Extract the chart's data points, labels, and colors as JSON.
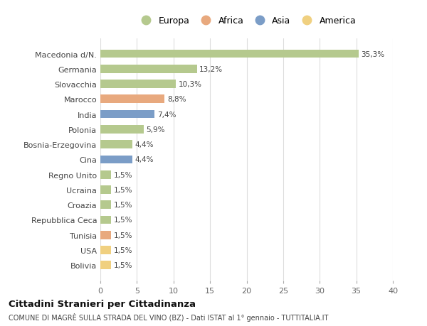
{
  "countries": [
    "Macedonia d/N.",
    "Germania",
    "Slovacchia",
    "Marocco",
    "India",
    "Polonia",
    "Bosnia-Erzegovina",
    "Cina",
    "Regno Unito",
    "Ucraina",
    "Croazia",
    "Repubblica Ceca",
    "Tunisia",
    "USA",
    "Bolivia"
  ],
  "values": [
    35.3,
    13.2,
    10.3,
    8.8,
    7.4,
    5.9,
    4.4,
    4.4,
    1.5,
    1.5,
    1.5,
    1.5,
    1.5,
    1.5,
    1.5
  ],
  "labels": [
    "35,3%",
    "13,2%",
    "10,3%",
    "8,8%",
    "7,4%",
    "5,9%",
    "4,4%",
    "4,4%",
    "1,5%",
    "1,5%",
    "1,5%",
    "1,5%",
    "1,5%",
    "1,5%",
    "1,5%"
  ],
  "categories": [
    "Europa",
    "Europa",
    "Europa",
    "Africa",
    "Asia",
    "Europa",
    "Europa",
    "Asia",
    "Europa",
    "Europa",
    "Europa",
    "Europa",
    "Africa",
    "America",
    "America"
  ],
  "colors": {
    "Europa": "#b5c98e",
    "Africa": "#e8a97e",
    "Asia": "#7b9dc7",
    "America": "#f0d080"
  },
  "xlim": [
    0,
    40
  ],
  "xticks": [
    0,
    5,
    10,
    15,
    20,
    25,
    30,
    35,
    40
  ],
  "title1": "Cittadini Stranieri per Cittadinanza",
  "title2": "COMUNE DI MAGRÈ SULLA STRADA DEL VINO (BZ) - Dati ISTAT al 1° gennaio - TUTTITALIA.IT",
  "background_color": "#ffffff",
  "grid_color": "#dddddd"
}
